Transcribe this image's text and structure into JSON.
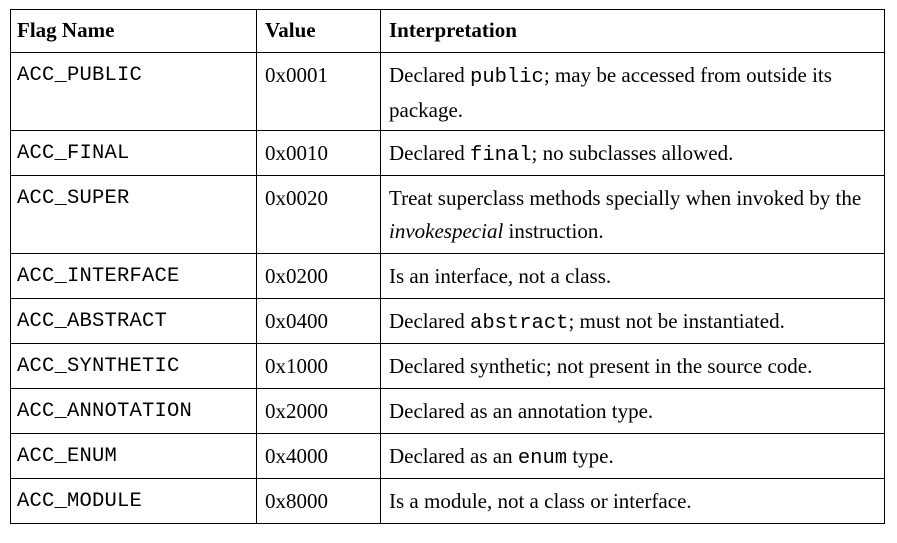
{
  "table": {
    "headers": {
      "flag_name": "Flag Name",
      "value": "Value",
      "interpretation": "Interpretation"
    },
    "rows": [
      {
        "name": "ACC_PUBLIC",
        "value": "0x0001",
        "interp": [
          {
            "t": "Declared "
          },
          {
            "t": "public",
            "style": "code"
          },
          {
            "t": "; may be accessed from outside its package."
          }
        ]
      },
      {
        "name": "ACC_FINAL",
        "value": "0x0010",
        "interp": [
          {
            "t": "Declared "
          },
          {
            "t": "final",
            "style": "code"
          },
          {
            "t": "; no subclasses allowed."
          }
        ]
      },
      {
        "name": "ACC_SUPER",
        "value": "0x0020",
        "interp": [
          {
            "t": "Treat superclass methods specially when invoked by the "
          },
          {
            "t": "invokespecial",
            "style": "italic"
          },
          {
            "t": " instruction."
          }
        ]
      },
      {
        "name": "ACC_INTERFACE",
        "value": "0x0200",
        "interp": [
          {
            "t": "Is an interface, not a class."
          }
        ]
      },
      {
        "name": "ACC_ABSTRACT",
        "value": "0x0400",
        "interp": [
          {
            "t": "Declared "
          },
          {
            "t": "abstract",
            "style": "code"
          },
          {
            "t": "; must not be instantiated."
          }
        ]
      },
      {
        "name": "ACC_SYNTHETIC",
        "value": "0x1000",
        "interp": [
          {
            "t": "Declared synthetic; not present in the source code."
          }
        ]
      },
      {
        "name": "ACC_ANNOTATION",
        "value": "0x2000",
        "interp": [
          {
            "t": "Declared as an annotation type."
          }
        ]
      },
      {
        "name": "ACC_ENUM",
        "value": "0x4000",
        "interp": [
          {
            "t": "Declared as an "
          },
          {
            "t": "enum",
            "style": "code"
          },
          {
            "t": " type."
          }
        ]
      },
      {
        "name": "ACC_MODULE",
        "value": "0x8000",
        "interp": [
          {
            "t": "Is a module, not a class or interface."
          }
        ]
      }
    ]
  }
}
